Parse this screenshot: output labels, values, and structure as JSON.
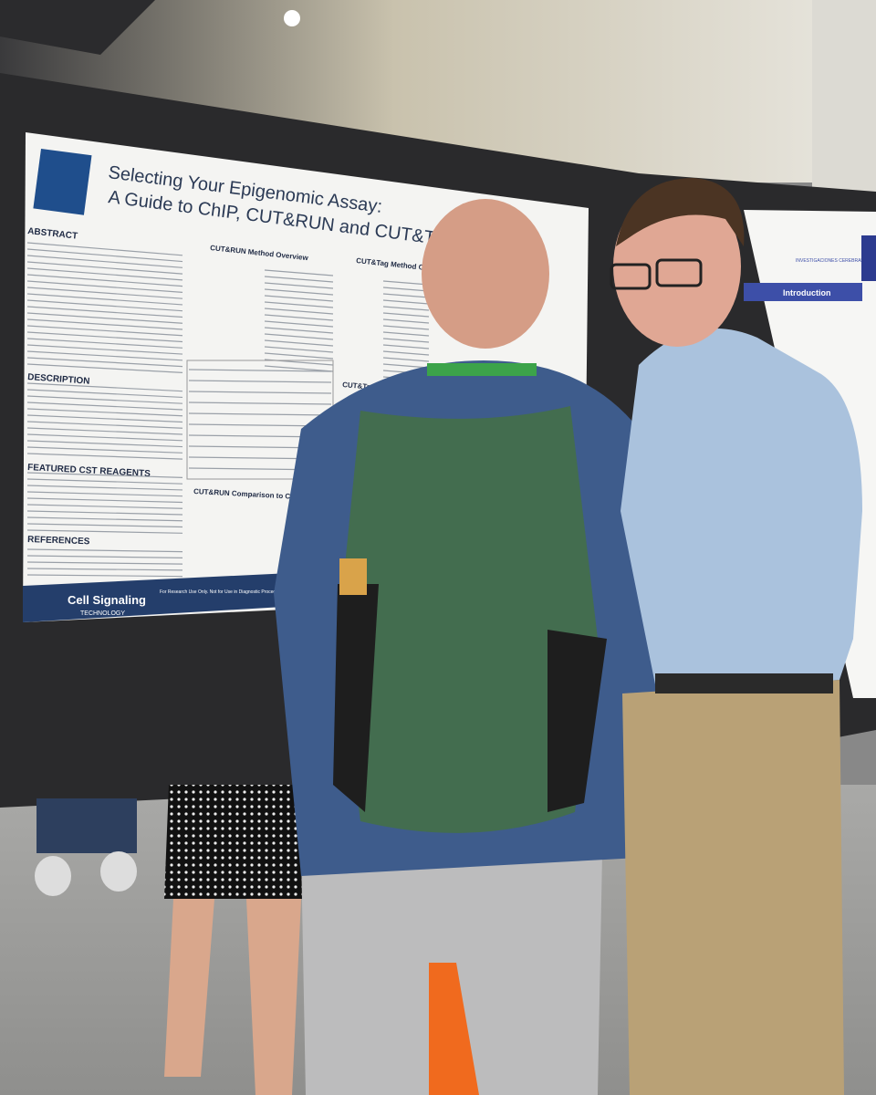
{
  "poster": {
    "title_line1": "Selecting Your Epigenomic Assay:",
    "title_line2": "A Guide to ChIP, CUT&RUN and CUT&Tag",
    "sections": [
      "ABSTRACT",
      "DESCRIPTION",
      "FEATURED CST REAGENTS",
      "REFERENCES"
    ],
    "panels": [
      "CUT&RUN Method Overview",
      "CUT&Tag Method Over",
      "CUT&Tag vs. CUT&RUN",
      "CUT&RUN Comparison to ChIP"
    ],
    "logo": "Cell Signaling",
    "logo_sub": "TECHNOLOGY",
    "footer": "For Research Use Only. Not for Use in Diagnostic Procedures"
  },
  "right_poster": {
    "heading": "Introduction",
    "org": "INVESTIGACIONES CEREBRALES"
  }
}
